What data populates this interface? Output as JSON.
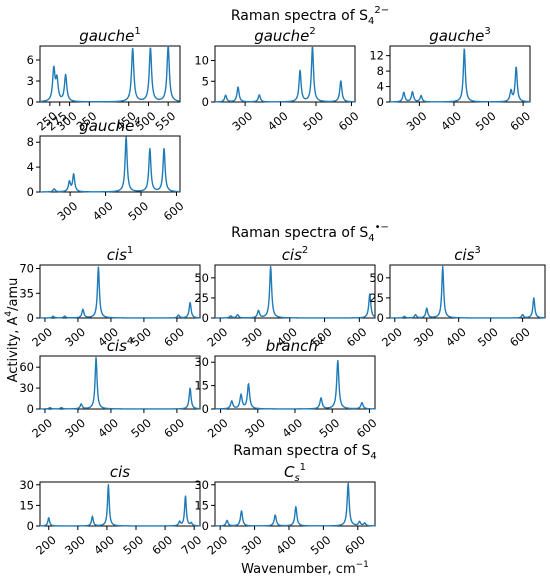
{
  "figure": {
    "groups": [
      {
        "title": "Raman spectra of S",
        "sub": "4",
        "sup": "2−"
      },
      {
        "title": "Raman spectra of S",
        "sub": "4",
        "sup": "•−"
      },
      {
        "title": "Raman spectra of S",
        "sub": "4",
        "sup": ""
      }
    ],
    "ylabel": {
      "prefix": "Activity, A",
      "sup": "4",
      "suffix": "/amu"
    },
    "xlabel": {
      "prefix": "Wavenumber, cm",
      "sup": "−1"
    }
  },
  "chart_data": [
    {
      "type": "line",
      "title": "gauche",
      "title_sup": "1",
      "xlim": [
        225,
        580
      ],
      "ylim": [
        0,
        8
      ],
      "xticks": [
        250,
        275,
        300,
        350,
        450,
        500,
        550
      ],
      "yticks": [
        0,
        3,
        6
      ],
      "peaks": [
        [
          260,
          4.6
        ],
        [
          268,
          3.0
        ],
        [
          290,
          3.8
        ],
        [
          460,
          7.6
        ],
        [
          505,
          7.7
        ],
        [
          550,
          8.0
        ]
      ]
    },
    {
      "type": "line",
      "title": "gauche",
      "title_sup": "2",
      "xlim": [
        215,
        610
      ],
      "ylim": [
        0,
        13.5
      ],
      "xticks": [
        300,
        400,
        500,
        600
      ],
      "yticks": [
        0,
        5,
        10
      ],
      "peaks": [
        [
          245,
          1.6
        ],
        [
          280,
          3.6
        ],
        [
          340,
          1.7
        ],
        [
          455,
          7.5
        ],
        [
          490,
          13.3
        ],
        [
          570,
          5.1
        ]
      ]
    },
    {
      "type": "line",
      "title": "gauche",
      "title_sup": "3",
      "xlim": [
        215,
        620
      ],
      "ylim": [
        0,
        14.5
      ],
      "xticks": [
        300,
        400,
        500,
        600
      ],
      "yticks": [
        0,
        4,
        8,
        12
      ],
      "peaks": [
        [
          255,
          2.5
        ],
        [
          280,
          2.6
        ],
        [
          305,
          1.6
        ],
        [
          430,
          13.8
        ],
        [
          565,
          2.8
        ],
        [
          580,
          9.0
        ]
      ]
    },
    {
      "type": "line",
      "title": "gauche",
      "title_sup": "4",
      "xlim": [
        215,
        610
      ],
      "ylim": [
        0,
        9
      ],
      "xticks": [
        300,
        400,
        500,
        600
      ],
      "yticks": [
        0,
        4,
        8
      ],
      "peaks": [
        [
          255,
          0.5
        ],
        [
          298,
          1.6
        ],
        [
          310,
          2.8
        ],
        [
          458,
          8.8
        ],
        [
          525,
          6.9
        ],
        [
          565,
          7.0
        ]
      ]
    },
    {
      "type": "line",
      "title": "cis",
      "title_sup": "1",
      "xlim": [
        185,
        670
      ],
      "ylim": [
        0,
        75
      ],
      "xticks": [
        200,
        300,
        400,
        500,
        600
      ],
      "yticks": [
        0,
        35,
        70
      ],
      "peaks": [
        [
          225,
          2.5
        ],
        [
          260,
          2.5
        ],
        [
          315,
          12
        ],
        [
          362,
          72
        ],
        [
          605,
          4
        ],
        [
          640,
          22
        ]
      ]
    },
    {
      "type": "line",
      "title": "cis",
      "title_sup": "2",
      "xlim": [
        185,
        645
      ],
      "ylim": [
        0,
        66
      ],
      "xticks": [
        200,
        300,
        400,
        500,
        600
      ],
      "yticks": [
        0,
        25,
        50
      ],
      "peaks": [
        [
          230,
          2.5
        ],
        [
          250,
          4
        ],
        [
          310,
          9
        ],
        [
          345,
          64
        ],
        [
          630,
          30
        ]
      ]
    },
    {
      "type": "line",
      "title": "cis",
      "title_sup": "3",
      "xlim": [
        185,
        670
      ],
      "ylim": [
        0,
        66
      ],
      "xticks": [
        200,
        300,
        400,
        500,
        600
      ],
      "yticks": [
        0,
        25,
        50
      ],
      "peaks": [
        [
          230,
          2
        ],
        [
          265,
          4
        ],
        [
          300,
          12
        ],
        [
          350,
          64
        ],
        [
          600,
          4
        ],
        [
          635,
          25
        ]
      ]
    },
    {
      "type": "line",
      "title": "cis",
      "title_sup": "4",
      "xlim": [
        185,
        670
      ],
      "ylim": [
        0,
        76
      ],
      "xticks": [
        200,
        300,
        400,
        500,
        600
      ],
      "yticks": [
        0,
        30,
        60
      ],
      "peaks": [
        [
          215,
          2
        ],
        [
          250,
          2
        ],
        [
          310,
          7
        ],
        [
          355,
          74
        ],
        [
          640,
          30
        ]
      ]
    },
    {
      "type": "line",
      "title": "branch",
      "title_sup": "1",
      "xlim": [
        185,
        615
      ],
      "ylim": [
        0,
        34
      ],
      "xticks": [
        200,
        300,
        400,
        500,
        600
      ],
      "yticks": [
        0,
        15,
        30
      ],
      "peaks": [
        [
          230,
          5
        ],
        [
          255,
          9
        ],
        [
          275,
          16
        ],
        [
          470,
          7
        ],
        [
          515,
          31
        ],
        [
          580,
          4
        ]
      ]
    },
    {
      "type": "line",
      "title": "cis",
      "title_sup": "",
      "xlim": [
        170,
        720
      ],
      "ylim": [
        0,
        32
      ],
      "xticks": [
        200,
        300,
        400,
        500,
        600,
        700
      ],
      "yticks": [
        0,
        15,
        30
      ],
      "peaks": [
        [
          200,
          6
        ],
        [
          350,
          7
        ],
        [
          405,
          30
        ],
        [
          650,
          3
        ],
        [
          670,
          22
        ],
        [
          690,
          2
        ]
      ]
    },
    {
      "type": "line",
      "title": "C",
      "title_sub": "s",
      "title_sup": "1",
      "xlim": [
        185,
        650
      ],
      "ylim": [
        0,
        32
      ],
      "xticks": [
        200,
        300,
        400,
        500,
        600
      ],
      "yticks": [
        0,
        15,
        30
      ],
      "peaks": [
        [
          220,
          4
        ],
        [
          262,
          11
        ],
        [
          360,
          8
        ],
        [
          420,
          14
        ],
        [
          572,
          31
        ],
        [
          605,
          3
        ],
        [
          620,
          2
        ]
      ]
    }
  ]
}
